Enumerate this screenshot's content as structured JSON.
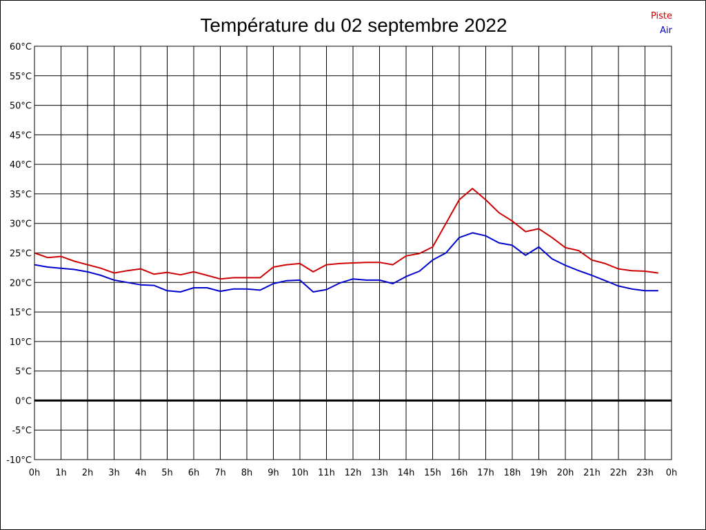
{
  "chart_data": {
    "type": "line",
    "title": "Température du 02 septembre 2022",
    "xlabel": "",
    "ylabel": "",
    "ylim": [
      -10,
      60
    ],
    "y_step": 5,
    "y_unit": "°C",
    "y_ticks": [
      "60°C",
      "55°C",
      "50°C",
      "45°C",
      "40°C",
      "35°C",
      "30°C",
      "25°C",
      "20°C",
      "15°C",
      "10°C",
      "5°C",
      "0°C",
      "-5°C",
      "-10°C"
    ],
    "xlim": [
      0,
      24
    ],
    "x_ticks": [
      "0h",
      "1h",
      "2h",
      "3h",
      "4h",
      "5h",
      "6h",
      "7h",
      "8h",
      "9h",
      "10h",
      "11h",
      "12h",
      "13h",
      "14h",
      "15h",
      "16h",
      "17h",
      "18h",
      "19h",
      "20h",
      "21h",
      "22h",
      "23h",
      "0h"
    ],
    "grid": true,
    "legend_position": "top-right",
    "x": [
      0,
      0.5,
      1,
      1.5,
      2,
      2.5,
      3,
      3.5,
      4,
      4.5,
      5,
      5.5,
      6,
      6.5,
      7,
      7.5,
      8,
      8.5,
      9,
      9.5,
      10,
      10.5,
      11,
      11.5,
      12,
      12.5,
      13,
      13.5,
      14,
      14.5,
      15,
      15.5,
      16,
      16.5,
      17,
      17.5,
      18,
      18.5,
      19,
      19.5,
      20,
      20.5,
      21,
      21.5,
      22,
      22.5,
      23,
      23.5
    ],
    "series": [
      {
        "name": "Piste",
        "color": "#cc0000",
        "values": [
          25.0,
          24.2,
          24.4,
          23.6,
          23.0,
          22.4,
          21.6,
          22.0,
          22.3,
          21.4,
          21.7,
          21.3,
          21.8,
          21.2,
          20.6,
          20.8,
          20.8,
          20.8,
          22.6,
          23.0,
          23.2,
          21.8,
          23.0,
          23.2,
          23.3,
          23.4,
          23.4,
          23.0,
          24.5,
          24.9,
          26.0,
          30.0,
          34.0,
          35.9,
          34.0,
          31.8,
          30.4,
          28.6,
          29.1,
          27.6,
          25.9,
          25.4,
          23.8,
          23.2,
          22.3,
          22.0,
          21.9,
          21.6
        ]
      },
      {
        "name": "Air",
        "color": "#0000cc",
        "values": [
          23.0,
          22.6,
          22.4,
          22.2,
          21.8,
          21.2,
          20.4,
          20.0,
          19.6,
          19.5,
          18.6,
          18.4,
          19.1,
          19.1,
          18.5,
          18.9,
          18.9,
          18.7,
          19.8,
          20.3,
          20.4,
          18.4,
          18.8,
          19.9,
          20.6,
          20.4,
          20.4,
          19.8,
          21.0,
          21.9,
          23.8,
          25.0,
          27.6,
          28.4,
          27.9,
          26.7,
          26.3,
          24.6,
          26.0,
          24.0,
          22.9,
          22.0,
          21.2,
          20.3,
          19.4,
          18.9,
          18.6,
          18.6
        ]
      }
    ]
  }
}
